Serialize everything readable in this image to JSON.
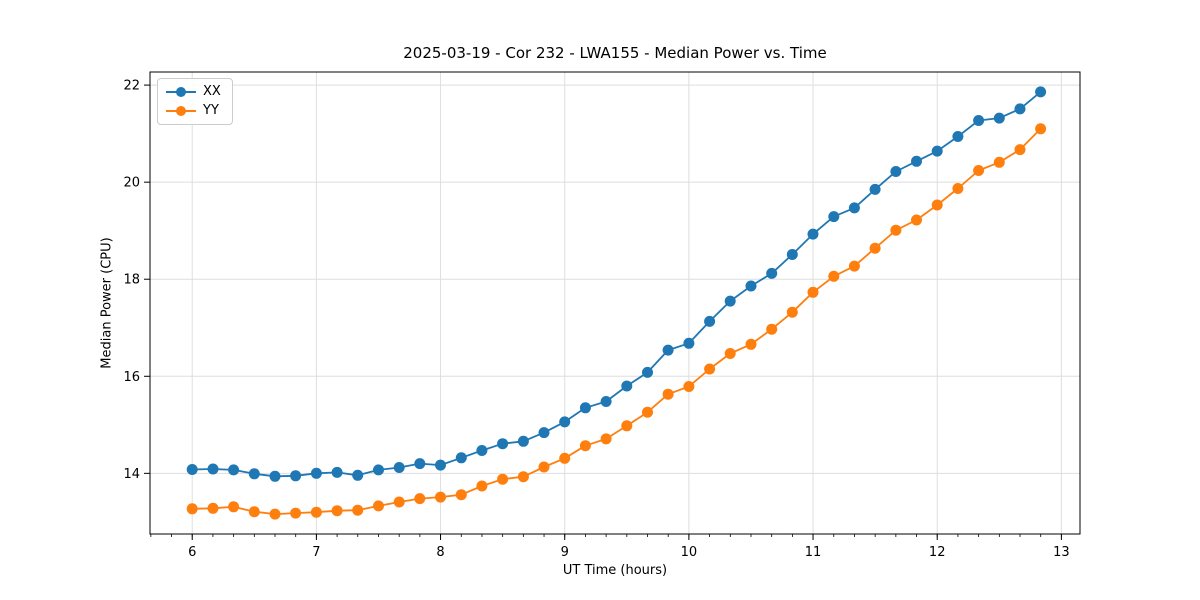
{
  "chart_data": {
    "type": "line",
    "title": "2025-03-19 - Cor 232 - LWA155 - Median Power vs. Time",
    "xlabel": "UT Time (hours)",
    "ylabel": "Median Power (CPU)",
    "xlim": [
      5.66,
      13.15
    ],
    "ylim": [
      12.75,
      22.27
    ],
    "xticks": [
      6,
      7,
      8,
      9,
      10,
      11,
      12,
      13
    ],
    "yticks": [
      14,
      16,
      18,
      20,
      22
    ],
    "minor_xtick_step": 0.16667,
    "grid": true,
    "grid_color": "#dedede",
    "legend_position": "upper left",
    "x": [
      6.0,
      6.167,
      6.333,
      6.5,
      6.667,
      6.833,
      7.0,
      7.167,
      7.333,
      7.5,
      7.667,
      7.833,
      8.0,
      8.167,
      8.333,
      8.5,
      8.667,
      8.833,
      9.0,
      9.167,
      9.333,
      9.5,
      9.667,
      9.833,
      10.0,
      10.167,
      10.333,
      10.5,
      10.667,
      10.833,
      11.0,
      11.167,
      11.333,
      11.5,
      11.667,
      11.833,
      12.0,
      12.167,
      12.333,
      12.5,
      12.667,
      12.833
    ],
    "series": [
      {
        "name": "XX",
        "color": "#1f77b4",
        "values": [
          14.08,
          14.09,
          14.07,
          13.99,
          13.94,
          13.95,
          14.0,
          14.02,
          13.96,
          14.07,
          14.12,
          14.2,
          14.17,
          14.32,
          14.47,
          14.61,
          14.66,
          14.84,
          15.06,
          15.35,
          15.48,
          15.8,
          16.08,
          16.54,
          16.68,
          17.13,
          17.55,
          17.86,
          18.12,
          18.51,
          18.93,
          19.29,
          19.47,
          19.85,
          20.22,
          20.43,
          20.64,
          20.94,
          21.27,
          21.32,
          21.51,
          21.86
        ]
      },
      {
        "name": "YY",
        "color": "#ff7f0e",
        "values": [
          13.27,
          13.28,
          13.31,
          13.21,
          13.16,
          13.18,
          13.2,
          13.23,
          13.24,
          13.33,
          13.41,
          13.48,
          13.51,
          13.56,
          13.74,
          13.88,
          13.93,
          14.13,
          14.31,
          14.57,
          14.71,
          14.98,
          15.26,
          15.63,
          15.79,
          16.15,
          16.47,
          16.66,
          16.97,
          17.32,
          17.73,
          18.06,
          18.27,
          18.64,
          19.01,
          19.22,
          19.53,
          19.87,
          20.24,
          20.41,
          20.67,
          21.1
        ]
      }
    ]
  }
}
